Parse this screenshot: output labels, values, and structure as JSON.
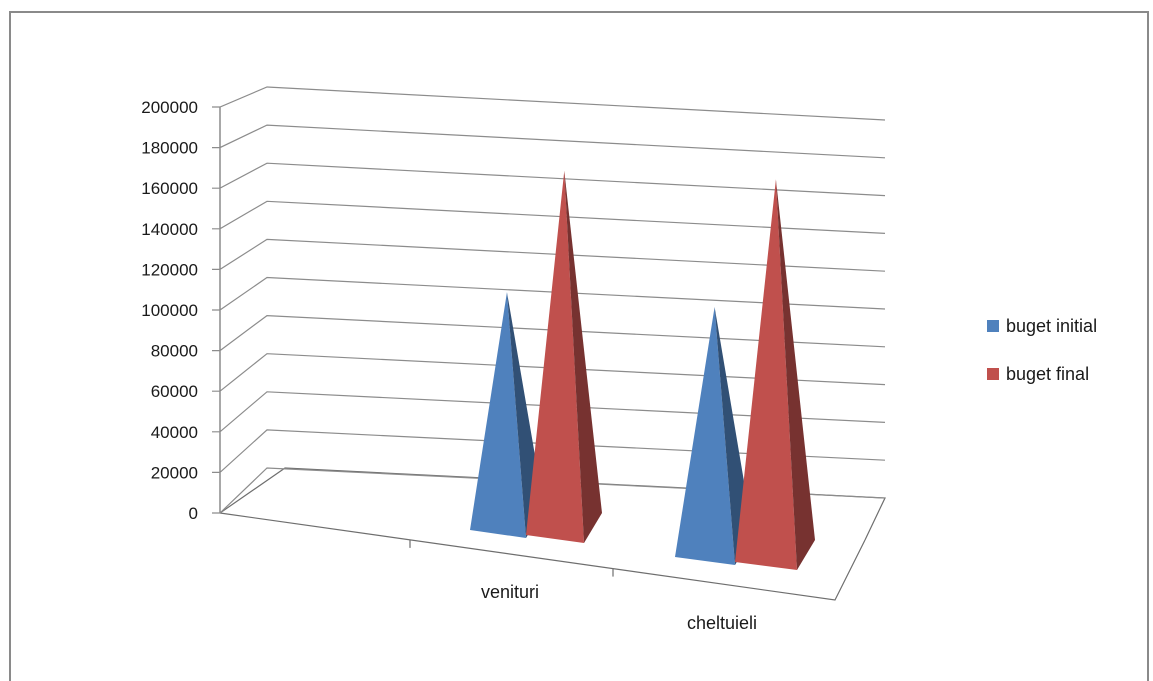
{
  "chart_data": {
    "type": "bar",
    "style": "3d-pyramid",
    "categories": [
      "venituri",
      "cheltuieli"
    ],
    "series": [
      {
        "name": "buget initial",
        "color": "#4F81BD",
        "values": [
          120000,
          120000
        ]
      },
      {
        "name": "buget final",
        "color": "#C0504D",
        "values": [
          182000,
          182000
        ]
      }
    ],
    "title": "",
    "xlabel": "",
    "ylabel": "",
    "ylim": [
      0,
      200000
    ],
    "y_ticks": [
      "0",
      "20000",
      "40000",
      "60000",
      "80000",
      "100000",
      "120000",
      "140000",
      "160000",
      "180000",
      "200000"
    ],
    "grid": true,
    "legend_position": "right"
  }
}
